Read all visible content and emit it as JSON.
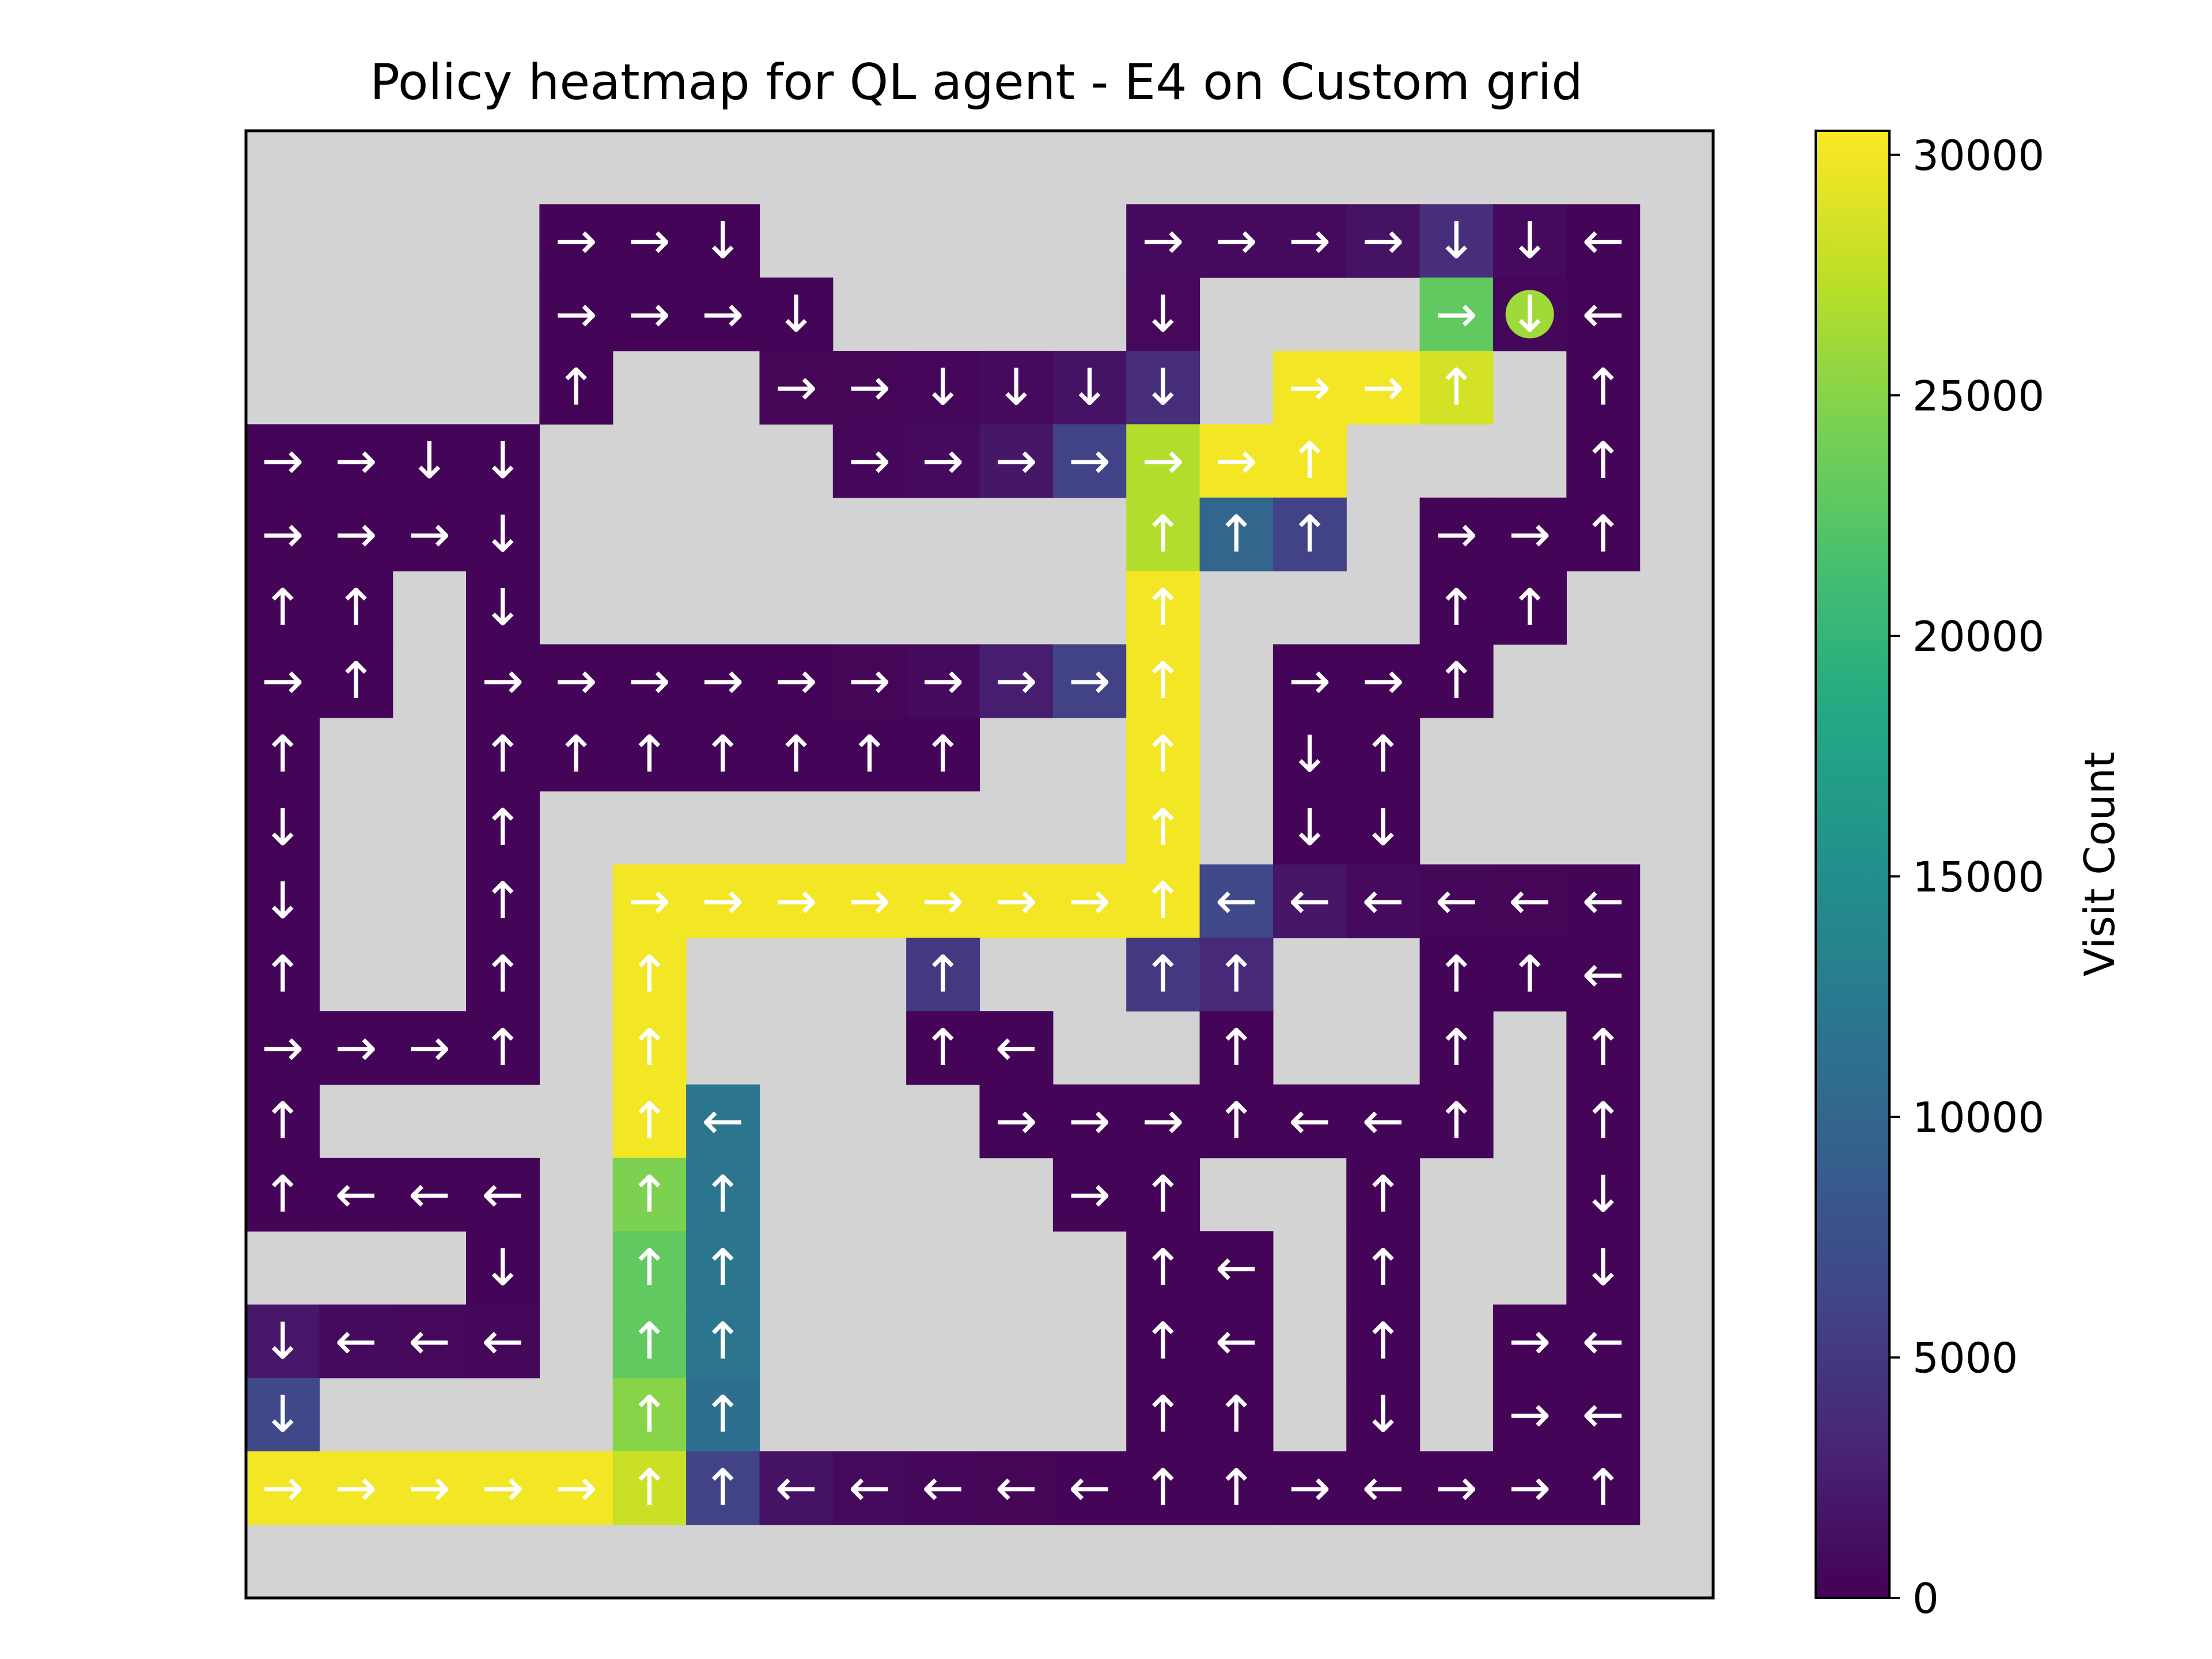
{
  "chart_data": {
    "type": "heatmap",
    "title": "Policy heatmap for QL agent - E4 on Custom grid",
    "grid_size": 20,
    "background_color": "#d3d3d3",
    "colormap": "viridis",
    "colorbar": {
      "label": "Visit Count",
      "min": 0,
      "max": 30500,
      "ticks": [
        0,
        5000,
        10000,
        15000,
        20000,
        25000,
        30000
      ],
      "tick_labels": [
        "0",
        "5000",
        "10000",
        "15000",
        "20000",
        "25000",
        "30000"
      ]
    },
    "goal": {
      "row": 2,
      "col": 17,
      "color": "#a0da39"
    },
    "cells": [
      {
        "r": 1,
        "c": 4,
        "a": "→",
        "v": 300
      },
      {
        "r": 1,
        "c": 5,
        "a": "→",
        "v": 300
      },
      {
        "r": 1,
        "c": 6,
        "a": "↓",
        "v": 300
      },
      {
        "r": 1,
        "c": 12,
        "a": "→",
        "v": 800
      },
      {
        "r": 1,
        "c": 13,
        "a": "→",
        "v": 800
      },
      {
        "r": 1,
        "c": 14,
        "a": "→",
        "v": 800
      },
      {
        "r": 1,
        "c": 15,
        "a": "→",
        "v": 1500
      },
      {
        "r": 1,
        "c": 16,
        "a": "↓",
        "v": 4000
      },
      {
        "r": 1,
        "c": 17,
        "a": "↓",
        "v": 800
      },
      {
        "r": 1,
        "c": 18,
        "a": "←",
        "v": 300
      },
      {
        "r": 2,
        "c": 4,
        "a": "→",
        "v": 300
      },
      {
        "r": 2,
        "c": 5,
        "a": "→",
        "v": 300
      },
      {
        "r": 2,
        "c": 6,
        "a": "→",
        "v": 300
      },
      {
        "r": 2,
        "c": 7,
        "a": "↓",
        "v": 300
      },
      {
        "r": 2,
        "c": 12,
        "a": "↓",
        "v": 600
      },
      {
        "r": 2,
        "c": 16,
        "a": "→",
        "v": 23000
      },
      {
        "r": 2,
        "c": 17,
        "a": "↓",
        "v": 500
      },
      {
        "r": 2,
        "c": 18,
        "a": "←",
        "v": 300
      },
      {
        "r": 3,
        "c": 4,
        "a": "↑",
        "v": 300
      },
      {
        "r": 3,
        "c": 7,
        "a": "→",
        "v": 400
      },
      {
        "r": 3,
        "c": 8,
        "a": "→",
        "v": 400
      },
      {
        "r": 3,
        "c": 9,
        "a": "↓",
        "v": 500
      },
      {
        "r": 3,
        "c": 10,
        "a": "↓",
        "v": 800
      },
      {
        "r": 3,
        "c": 11,
        "a": "↓",
        "v": 1500
      },
      {
        "r": 3,
        "c": 12,
        "a": "↓",
        "v": 4000
      },
      {
        "r": 3,
        "c": 14,
        "a": "→",
        "v": 30000
      },
      {
        "r": 3,
        "c": 15,
        "a": "→",
        "v": 30000
      },
      {
        "r": 3,
        "c": 16,
        "a": "↑",
        "v": 28500
      },
      {
        "r": 3,
        "c": 18,
        "a": "↑",
        "v": 300
      },
      {
        "r": 4,
        "c": 0,
        "a": "→",
        "v": 300
      },
      {
        "r": 4,
        "c": 1,
        "a": "→",
        "v": 300
      },
      {
        "r": 4,
        "c": 2,
        "a": "↓",
        "v": 300
      },
      {
        "r": 4,
        "c": 3,
        "a": "↓",
        "v": 300
      },
      {
        "r": 4,
        "c": 8,
        "a": "→",
        "v": 500
      },
      {
        "r": 4,
        "c": 9,
        "a": "→",
        "v": 800
      },
      {
        "r": 4,
        "c": 10,
        "a": "→",
        "v": 1800
      },
      {
        "r": 4,
        "c": 11,
        "a": "→",
        "v": 6000
      },
      {
        "r": 4,
        "c": 12,
        "a": "→",
        "v": 27000
      },
      {
        "r": 4,
        "c": 13,
        "a": "→",
        "v": 30000
      },
      {
        "r": 4,
        "c": 14,
        "a": "↑",
        "v": 30000
      },
      {
        "r": 4,
        "c": 18,
        "a": "↑",
        "v": 300
      },
      {
        "r": 5,
        "c": 0,
        "a": "→",
        "v": 300
      },
      {
        "r": 5,
        "c": 1,
        "a": "→",
        "v": 300
      },
      {
        "r": 5,
        "c": 2,
        "a": "→",
        "v": 300
      },
      {
        "r": 5,
        "c": 3,
        "a": "↓",
        "v": 300
      },
      {
        "r": 5,
        "c": 12,
        "a": "↑",
        "v": 27000
      },
      {
        "r": 5,
        "c": 13,
        "a": "↑",
        "v": 10000
      },
      {
        "r": 5,
        "c": 14,
        "a": "↑",
        "v": 6000
      },
      {
        "r": 5,
        "c": 16,
        "a": "→",
        "v": 300
      },
      {
        "r": 5,
        "c": 17,
        "a": "→",
        "v": 300
      },
      {
        "r": 5,
        "c": 18,
        "a": "↑",
        "v": 300
      },
      {
        "r": 6,
        "c": 0,
        "a": "↑",
        "v": 300
      },
      {
        "r": 6,
        "c": 1,
        "a": "↑",
        "v": 300
      },
      {
        "r": 6,
        "c": 3,
        "a": "↓",
        "v": 300
      },
      {
        "r": 6,
        "c": 12,
        "a": "↑",
        "v": 30000
      },
      {
        "r": 6,
        "c": 16,
        "a": "↑",
        "v": 300
      },
      {
        "r": 6,
        "c": 17,
        "a": "↑",
        "v": 300
      },
      {
        "r": 7,
        "c": 0,
        "a": "→",
        "v": 300
      },
      {
        "r": 7,
        "c": 1,
        "a": "↑",
        "v": 300
      },
      {
        "r": 7,
        "c": 3,
        "a": "→",
        "v": 300
      },
      {
        "r": 7,
        "c": 4,
        "a": "→",
        "v": 300
      },
      {
        "r": 7,
        "c": 5,
        "a": "→",
        "v": 300
      },
      {
        "r": 7,
        "c": 6,
        "a": "→",
        "v": 300
      },
      {
        "r": 7,
        "c": 7,
        "a": "→",
        "v": 300
      },
      {
        "r": 7,
        "c": 8,
        "a": "→",
        "v": 400
      },
      {
        "r": 7,
        "c": 9,
        "a": "→",
        "v": 800
      },
      {
        "r": 7,
        "c": 10,
        "a": "→",
        "v": 2500
      },
      {
        "r": 7,
        "c": 11,
        "a": "→",
        "v": 6000
      },
      {
        "r": 7,
        "c": 12,
        "a": "↑",
        "v": 30000
      },
      {
        "r": 7,
        "c": 14,
        "a": "→",
        "v": 300
      },
      {
        "r": 7,
        "c": 15,
        "a": "→",
        "v": 300
      },
      {
        "r": 7,
        "c": 16,
        "a": "↑",
        "v": 300
      },
      {
        "r": 8,
        "c": 0,
        "a": "↑",
        "v": 300
      },
      {
        "r": 8,
        "c": 3,
        "a": "↑",
        "v": 300
      },
      {
        "r": 8,
        "c": 4,
        "a": "↑",
        "v": 300
      },
      {
        "r": 8,
        "c": 5,
        "a": "↑",
        "v": 300
      },
      {
        "r": 8,
        "c": 6,
        "a": "↑",
        "v": 300
      },
      {
        "r": 8,
        "c": 7,
        "a": "↑",
        "v": 300
      },
      {
        "r": 8,
        "c": 8,
        "a": "↑",
        "v": 300
      },
      {
        "r": 8,
        "c": 9,
        "a": "↑",
        "v": 300
      },
      {
        "r": 8,
        "c": 12,
        "a": "↑",
        "v": 30000
      },
      {
        "r": 8,
        "c": 14,
        "a": "↓",
        "v": 300
      },
      {
        "r": 8,
        "c": 15,
        "a": "↑",
        "v": 300
      },
      {
        "r": 9,
        "c": 0,
        "a": "↓",
        "v": 300
      },
      {
        "r": 9,
        "c": 3,
        "a": "↑",
        "v": 300
      },
      {
        "r": 9,
        "c": 12,
        "a": "↑",
        "v": 30000
      },
      {
        "r": 9,
        "c": 14,
        "a": "↓",
        "v": 300
      },
      {
        "r": 9,
        "c": 15,
        "a": "↓",
        "v": 300
      },
      {
        "r": 10,
        "c": 0,
        "a": "↓",
        "v": 300
      },
      {
        "r": 10,
        "c": 3,
        "a": "↑",
        "v": 300
      },
      {
        "r": 10,
        "c": 5,
        "a": "→",
        "v": 30000
      },
      {
        "r": 10,
        "c": 6,
        "a": "→",
        "v": 30000
      },
      {
        "r": 10,
        "c": 7,
        "a": "→",
        "v": 30000
      },
      {
        "r": 10,
        "c": 8,
        "a": "→",
        "v": 30000
      },
      {
        "r": 10,
        "c": 9,
        "a": "→",
        "v": 30000
      },
      {
        "r": 10,
        "c": 10,
        "a": "→",
        "v": 30000
      },
      {
        "r": 10,
        "c": 11,
        "a": "→",
        "v": 30000
      },
      {
        "r": 10,
        "c": 12,
        "a": "↑",
        "v": 30000
      },
      {
        "r": 10,
        "c": 13,
        "a": "←",
        "v": 6500
      },
      {
        "r": 10,
        "c": 14,
        "a": "←",
        "v": 1800
      },
      {
        "r": 10,
        "c": 15,
        "a": "←",
        "v": 800
      },
      {
        "r": 10,
        "c": 16,
        "a": "←",
        "v": 500
      },
      {
        "r": 10,
        "c": 17,
        "a": "←",
        "v": 400
      },
      {
        "r": 10,
        "c": 18,
        "a": "←",
        "v": 300
      },
      {
        "r": 11,
        "c": 0,
        "a": "↑",
        "v": 300
      },
      {
        "r": 11,
        "c": 3,
        "a": "↑",
        "v": 300
      },
      {
        "r": 11,
        "c": 5,
        "a": "↑",
        "v": 30000
      },
      {
        "r": 11,
        "c": 9,
        "a": "↑",
        "v": 5000
      },
      {
        "r": 11,
        "c": 12,
        "a": "↑",
        "v": 5000
      },
      {
        "r": 11,
        "c": 13,
        "a": "↑",
        "v": 3500
      },
      {
        "r": 11,
        "c": 16,
        "a": "↑",
        "v": 300
      },
      {
        "r": 11,
        "c": 17,
        "a": "↑",
        "v": 300
      },
      {
        "r": 11,
        "c": 18,
        "a": "←",
        "v": 300
      },
      {
        "r": 12,
        "c": 0,
        "a": "→",
        "v": 300
      },
      {
        "r": 12,
        "c": 1,
        "a": "→",
        "v": 300
      },
      {
        "r": 12,
        "c": 2,
        "a": "→",
        "v": 300
      },
      {
        "r": 12,
        "c": 3,
        "a": "↑",
        "v": 300
      },
      {
        "r": 12,
        "c": 5,
        "a": "↑",
        "v": 30000
      },
      {
        "r": 12,
        "c": 9,
        "a": "↑",
        "v": 300
      },
      {
        "r": 12,
        "c": 10,
        "a": "←",
        "v": 300
      },
      {
        "r": 12,
        "c": 13,
        "a": "↑",
        "v": 300
      },
      {
        "r": 12,
        "c": 16,
        "a": "↑",
        "v": 300
      },
      {
        "r": 12,
        "c": 18,
        "a": "↑",
        "v": 300
      },
      {
        "r": 13,
        "c": 0,
        "a": "↑",
        "v": 300
      },
      {
        "r": 13,
        "c": 5,
        "a": "↑",
        "v": 30000
      },
      {
        "r": 13,
        "c": 6,
        "a": "←",
        "v": 12000
      },
      {
        "r": 13,
        "c": 10,
        "a": "→",
        "v": 300
      },
      {
        "r": 13,
        "c": 11,
        "a": "→",
        "v": 300
      },
      {
        "r": 13,
        "c": 12,
        "a": "→",
        "v": 300
      },
      {
        "r": 13,
        "c": 13,
        "a": "↑",
        "v": 300
      },
      {
        "r": 13,
        "c": 14,
        "a": "←",
        "v": 300
      },
      {
        "r": 13,
        "c": 15,
        "a": "←",
        "v": 300
      },
      {
        "r": 13,
        "c": 16,
        "a": "↑",
        "v": 300
      },
      {
        "r": 13,
        "c": 18,
        "a": "↑",
        "v": 300
      },
      {
        "r": 14,
        "c": 0,
        "a": "↑",
        "v": 300
      },
      {
        "r": 14,
        "c": 1,
        "a": "←",
        "v": 300
      },
      {
        "r": 14,
        "c": 2,
        "a": "←",
        "v": 300
      },
      {
        "r": 14,
        "c": 3,
        "a": "←",
        "v": 300
      },
      {
        "r": 14,
        "c": 5,
        "a": "↑",
        "v": 24500
      },
      {
        "r": 14,
        "c": 6,
        "a": "↑",
        "v": 12000
      },
      {
        "r": 14,
        "c": 11,
        "a": "→",
        "v": 300
      },
      {
        "r": 14,
        "c": 12,
        "a": "↑",
        "v": 300
      },
      {
        "r": 14,
        "c": 15,
        "a": "↑",
        "v": 300
      },
      {
        "r": 14,
        "c": 18,
        "a": "↓",
        "v": 300
      },
      {
        "r": 15,
        "c": 3,
        "a": "↓",
        "v": 300
      },
      {
        "r": 15,
        "c": 5,
        "a": "↑",
        "v": 23000
      },
      {
        "r": 15,
        "c": 6,
        "a": "↑",
        "v": 12000
      },
      {
        "r": 15,
        "c": 12,
        "a": "↑",
        "v": 300
      },
      {
        "r": 15,
        "c": 13,
        "a": "←",
        "v": 300
      },
      {
        "r": 15,
        "c": 15,
        "a": "↑",
        "v": 300
      },
      {
        "r": 15,
        "c": 18,
        "a": "↓",
        "v": 300
      },
      {
        "r": 16,
        "c": 0,
        "a": "↓",
        "v": 2000
      },
      {
        "r": 16,
        "c": 1,
        "a": "←",
        "v": 800
      },
      {
        "r": 16,
        "c": 2,
        "a": "←",
        "v": 600
      },
      {
        "r": 16,
        "c": 3,
        "a": "←",
        "v": 500
      },
      {
        "r": 16,
        "c": 5,
        "a": "↑",
        "v": 23000
      },
      {
        "r": 16,
        "c": 6,
        "a": "↑",
        "v": 12000
      },
      {
        "r": 16,
        "c": 12,
        "a": "↑",
        "v": 300
      },
      {
        "r": 16,
        "c": 13,
        "a": "←",
        "v": 300
      },
      {
        "r": 16,
        "c": 15,
        "a": "↑",
        "v": 300
      },
      {
        "r": 16,
        "c": 17,
        "a": "→",
        "v": 300
      },
      {
        "r": 16,
        "c": 18,
        "a": "←",
        "v": 300
      },
      {
        "r": 17,
        "c": 0,
        "a": "↓",
        "v": 6500
      },
      {
        "r": 17,
        "c": 5,
        "a": "↑",
        "v": 25000
      },
      {
        "r": 17,
        "c": 6,
        "a": "↑",
        "v": 11000
      },
      {
        "r": 17,
        "c": 12,
        "a": "↑",
        "v": 300
      },
      {
        "r": 17,
        "c": 13,
        "a": "↑",
        "v": 300
      },
      {
        "r": 17,
        "c": 15,
        "a": "↓",
        "v": 300
      },
      {
        "r": 17,
        "c": 17,
        "a": "→",
        "v": 300
      },
      {
        "r": 17,
        "c": 18,
        "a": "←",
        "v": 300
      },
      {
        "r": 18,
        "c": 0,
        "a": "→",
        "v": 30000
      },
      {
        "r": 18,
        "c": 1,
        "a": "→",
        "v": 30000
      },
      {
        "r": 18,
        "c": 2,
        "a": "→",
        "v": 30000
      },
      {
        "r": 18,
        "c": 3,
        "a": "→",
        "v": 30000
      },
      {
        "r": 18,
        "c": 4,
        "a": "→",
        "v": 30000
      },
      {
        "r": 18,
        "c": 5,
        "a": "↑",
        "v": 28000
      },
      {
        "r": 18,
        "c": 6,
        "a": "↑",
        "v": 6000
      },
      {
        "r": 18,
        "c": 7,
        "a": "←",
        "v": 1500
      },
      {
        "r": 18,
        "c": 8,
        "a": "←",
        "v": 800
      },
      {
        "r": 18,
        "c": 9,
        "a": "←",
        "v": 500
      },
      {
        "r": 18,
        "c": 10,
        "a": "←",
        "v": 400
      },
      {
        "r": 18,
        "c": 11,
        "a": "←",
        "v": 300
      },
      {
        "r": 18,
        "c": 12,
        "a": "↑",
        "v": 300
      },
      {
        "r": 18,
        "c": 13,
        "a": "↑",
        "v": 300
      },
      {
        "r": 18,
        "c": 14,
        "a": "→",
        "v": 300
      },
      {
        "r": 18,
        "c": 15,
        "a": "←",
        "v": 300
      },
      {
        "r": 18,
        "c": 16,
        "a": "→",
        "v": 300
      },
      {
        "r": 18,
        "c": 17,
        "a": "→",
        "v": 300
      },
      {
        "r": 18,
        "c": 18,
        "a": "↑",
        "v": 300
      }
    ]
  }
}
